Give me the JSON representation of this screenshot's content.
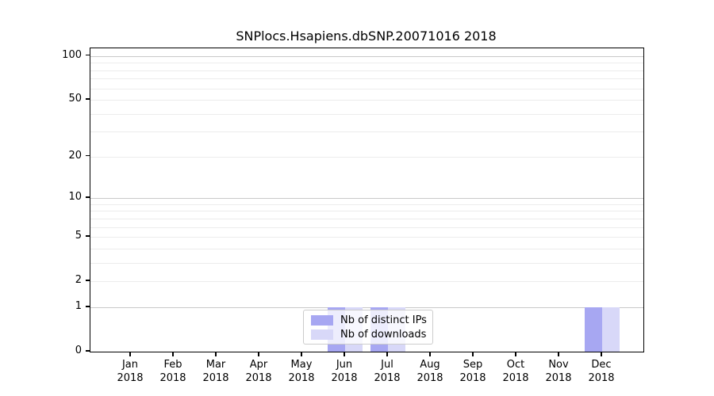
{
  "title": "SNPlocs.Hsapiens.dbSNP.20071016 2018",
  "colors": {
    "distinct_ips": "#a7a7f2",
    "downloads": "#d8d8f8",
    "grid_major": "#c9c9c9",
    "grid_minor": "#ececec",
    "axis": "#000000",
    "legend_border": "#cccccc"
  },
  "legend": {
    "items": [
      {
        "label": "Nb of distinct IPs",
        "color_key": "distinct_ips"
      },
      {
        "label": "Nb of downloads",
        "color_key": "downloads"
      }
    ]
  },
  "chart_data": {
    "type": "bar",
    "title": "SNPlocs.Hsapiens.dbSNP.20071016 2018",
    "categories": [
      "Jan 2018",
      "Feb 2018",
      "Mar 2018",
      "Apr 2018",
      "May 2018",
      "Jun 2018",
      "Jul 2018",
      "Aug 2018",
      "Sep 2018",
      "Oct 2018",
      "Nov 2018",
      "Dec 2018"
    ],
    "series": [
      {
        "name": "Nb of distinct IPs",
        "values": [
          0,
          0,
          0,
          0,
          0,
          1,
          1,
          0,
          0,
          0,
          0,
          1
        ]
      },
      {
        "name": "Nb of downloads",
        "values": [
          0,
          0,
          0,
          0,
          0,
          1,
          1,
          0,
          0,
          0,
          0,
          1
        ]
      }
    ],
    "yscale": "log1p",
    "ylim": [
      0,
      113
    ],
    "yticks": [
      0,
      1,
      2,
      5,
      10,
      20,
      50,
      100
    ],
    "grid_major_lines": [
      1,
      10,
      100
    ],
    "grid_minor_lines": [
      2,
      3,
      4,
      5,
      6,
      7,
      8,
      9,
      20,
      30,
      40,
      50,
      60,
      70,
      80,
      90
    ],
    "xlabel": "",
    "ylabel": "",
    "grid": "horizontal",
    "legend_position": "bottom-center-inside"
  }
}
